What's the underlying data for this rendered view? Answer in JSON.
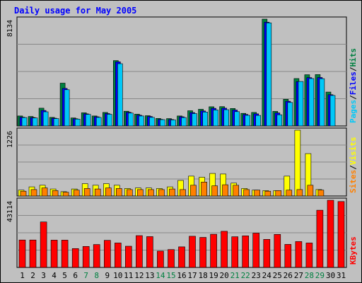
{
  "title": "Daily usage for May 2005",
  "chart_data": [
    {
      "type": "bar",
      "panel": "hits-files-pages",
      "categories": [
        "1",
        "2",
        "3",
        "4",
        "5",
        "6",
        "7",
        "8",
        "9",
        "10",
        "11",
        "12",
        "13",
        "14",
        "15",
        "16",
        "17",
        "18",
        "19",
        "20",
        "21",
        "22",
        "23",
        "24",
        "25",
        "26",
        "27",
        "28",
        "29",
        "30",
        "31"
      ],
      "ymax_label": "8134",
      "ylim": [
        0,
        8134
      ],
      "grid": true,
      "legend": [
        {
          "label": "Pages",
          "color": "#00c8f8"
        },
        {
          "label": "Files",
          "color": "#0000ff"
        },
        {
          "label": "Hits",
          "color": "#008040"
        }
      ],
      "series": [
        {
          "name": "Hits",
          "color": "#008040",
          "values": [
            760,
            720,
            1350,
            650,
            3260,
            610,
            1000,
            760,
            1030,
            4980,
            1120,
            900,
            780,
            570,
            560,
            760,
            1160,
            1270,
            1460,
            1470,
            1330,
            960,
            1030,
            8134,
            1110,
            2030,
            3610,
            3900,
            3910,
            2580,
            0
          ]
        },
        {
          "name": "Files",
          "color": "#0000ff",
          "values": [
            670,
            640,
            1180,
            590,
            2860,
            550,
            920,
            700,
            940,
            4880,
            1040,
            820,
            720,
            500,
            490,
            700,
            1020,
            1140,
            1340,
            1350,
            1210,
            880,
            920,
            7900,
            990,
            1880,
            3380,
            3680,
            3690,
            2380,
            0
          ]
        },
        {
          "name": "Pages",
          "color": "#00c8f8",
          "values": [
            640,
            610,
            1080,
            560,
            2760,
            520,
            880,
            650,
            890,
            4740,
            980,
            760,
            650,
            480,
            460,
            640,
            940,
            1060,
            1220,
            1240,
            1090,
            810,
            800,
            7850,
            850,
            1790,
            3390,
            3610,
            3600,
            2320,
            0
          ]
        }
      ]
    },
    {
      "type": "bar",
      "panel": "visits-sites",
      "categories": [
        "1",
        "2",
        "3",
        "4",
        "5",
        "6",
        "7",
        "8",
        "9",
        "10",
        "11",
        "12",
        "13",
        "14",
        "15",
        "16",
        "17",
        "18",
        "19",
        "20",
        "21",
        "22",
        "23",
        "24",
        "25",
        "26",
        "27",
        "28",
        "29",
        "30",
        "31"
      ],
      "ymax_label": "1226",
      "ylim": [
        0,
        1226
      ],
      "grid": true,
      "legend": [
        {
          "label": "Sites",
          "color": "#ff8000"
        },
        {
          "label": "Visits",
          "color": "#ffff00"
        }
      ],
      "series": [
        {
          "name": "Visits",
          "color": "#ffff00",
          "values": [
            110,
            170,
            200,
            130,
            80,
            130,
            230,
            200,
            230,
            200,
            140,
            150,
            150,
            140,
            170,
            290,
            370,
            350,
            420,
            410,
            240,
            140,
            110,
            100,
            100,
            370,
            1226,
            790,
            120,
            0,
            0
          ]
        },
        {
          "name": "Sites",
          "color": "#ff8000",
          "values": [
            90,
            120,
            150,
            100,
            70,
            110,
            140,
            130,
            150,
            140,
            120,
            120,
            120,
            120,
            130,
            120,
            200,
            260,
            190,
            210,
            200,
            120,
            110,
            90,
            100,
            110,
            120,
            200,
            110,
            0,
            0
          ]
        }
      ]
    },
    {
      "type": "bar",
      "panel": "kbytes",
      "categories": [
        "1",
        "2",
        "3",
        "4",
        "5",
        "6",
        "7",
        "8",
        "9",
        "10",
        "11",
        "12",
        "13",
        "14",
        "15",
        "16",
        "17",
        "18",
        "19",
        "20",
        "21",
        "22",
        "23",
        "24",
        "25",
        "26",
        "27",
        "28",
        "29",
        "30",
        "31"
      ],
      "ymax_label": "43114",
      "ylim": [
        0,
        43114
      ],
      "grid": true,
      "legend": [
        {
          "label": "KBytes",
          "color": "#ff0000"
        }
      ],
      "series": [
        {
          "name": "KBytes",
          "color": "#ff0000",
          "values": [
            17600,
            17600,
            29200,
            17500,
            17500,
            12100,
            13500,
            14700,
            17400,
            15700,
            13600,
            20400,
            19800,
            10500,
            11500,
            13200,
            20000,
            19300,
            21300,
            23200,
            19700,
            20300,
            22000,
            18000,
            21200,
            14800,
            16600,
            15700,
            36700,
            43114,
            42300
          ]
        }
      ]
    }
  ]
}
